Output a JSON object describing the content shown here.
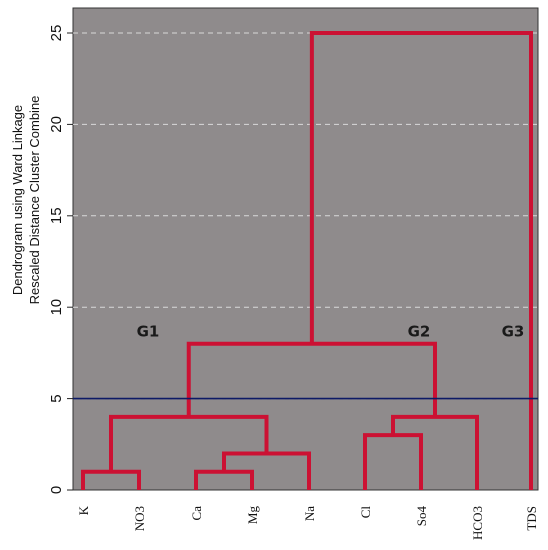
{
  "chart_data": {
    "type": "dendrogram",
    "ylabel_line1": "Dendrogram using Ward Linkage",
    "ylabel_line2": "Rescaled Distance Cluster Combine",
    "ylim": [
      0,
      26
    ],
    "yticks": [
      0,
      5,
      10,
      15,
      20,
      25
    ],
    "grid": "horizontal dashed",
    "background": "#8f8b8c",
    "branch_color": "#cc1133",
    "cut_line_color": "#0d1a66",
    "cut_height": 5,
    "leaves": [
      "K",
      "NO3",
      "Ca",
      "Mg",
      "Na",
      "Cl",
      "So4",
      "HCO3",
      "TDS"
    ],
    "merges": [
      {
        "left": "K",
        "right": "NO3",
        "height": 1
      },
      {
        "left": "Ca",
        "right": "Mg",
        "height": 1
      },
      {
        "left": "Ca+Mg",
        "right": "Na",
        "height": 2
      },
      {
        "left": "Cl",
        "right": "So4",
        "height": 3
      },
      {
        "left": "K+NO3",
        "right": "Ca+Mg+Na",
        "height": 4
      },
      {
        "left": "Cl+So4",
        "right": "HCO3",
        "height": 4
      },
      {
        "left": "G1",
        "right": "G2",
        "height": 8
      },
      {
        "left": "G1+G2",
        "right": "TDS",
        "height": 25
      }
    ],
    "groups": [
      {
        "label": "G1",
        "x_leaf": 1,
        "y": 8.5
      },
      {
        "label": "G2",
        "x_leaf": 6.8,
        "y": 8.5
      },
      {
        "label": "G3",
        "x_leaf": 8.0,
        "y": 8.5
      }
    ]
  }
}
